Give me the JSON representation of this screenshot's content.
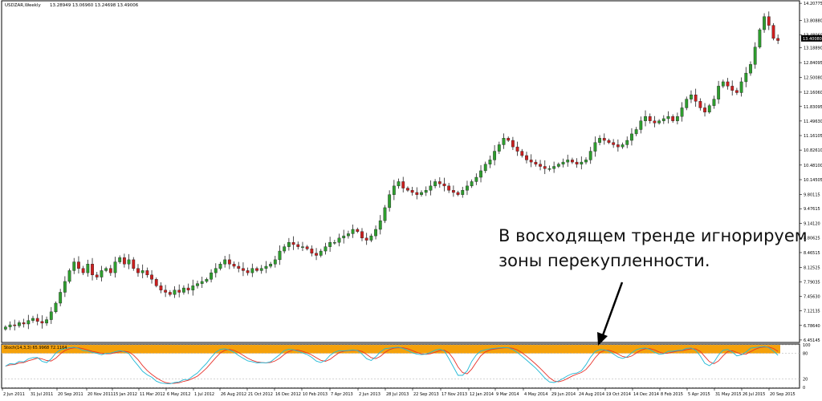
{
  "header": {
    "symbol_label": "USDZAR,Weekly",
    "ohlc_label": "13.28949 13.06960 13.24698 13.49006"
  },
  "annotation": {
    "line1": "В восходящем тренде игнорируем",
    "line2": "зоны перекупленности."
  },
  "indicator": {
    "label": "Stoch(14,3,3) 65.9968 72.1164"
  },
  "colors": {
    "bull": "#2e9e2e",
    "bear": "#cc1f1f",
    "stoch_main": "#1fb8d6",
    "stoch_signal": "#e8322b",
    "overbought_zone": "#f5a10a",
    "current_price_bg": "#000000"
  },
  "chart_data": [
    {
      "type": "candlestick",
      "title": "USDZAR,Weekly",
      "ylim": [
        6.45,
        14.21
      ],
      "price_ticks": [
        "14.20775",
        "13.80880",
        "13.48060",
        "13.18890",
        "12.84095",
        "12.50080",
        "12.16060",
        "11.83095",
        "11.49630",
        "11.16105",
        "10.82610",
        "10.48100",
        "10.14505",
        "9.80115",
        "9.47615",
        "9.14120",
        "8.80625",
        "8.46515",
        "8.12525",
        "7.79035",
        "7.45630",
        "7.12135",
        "6.78640",
        "6.45145"
      ],
      "current_price": "13.40080",
      "current_price_value": 13.4008,
      "x_labels": [
        "2 Jun 2011",
        "31 Jul 2011",
        "20 Sep 2011",
        "20 Nov 2011",
        "15 Jan 2012",
        "11 Mar 2012",
        "6 May 2012",
        "1 Jul 2012",
        "26 Aug 2012",
        "21 Oct 2012",
        "16 Dec 2012",
        "10 Feb 2013",
        "7 Apr 2013",
        "2 Jun 2013",
        "28 Jul 2013",
        "22 Sep 2013",
        "17 Nov 2013",
        "12 Jan 2014",
        "9 Mar 2014",
        "4 May 2014",
        "29 Jun 2014",
        "24 Aug 2014",
        "19 Oct 2014",
        "14 Dec 2014",
        "8 Feb 2015",
        "5 Apr 2015",
        "31 May 2015",
        "26 Jul 2015",
        "20 Sep 2015"
      ],
      "close_series": [
        6.75,
        6.8,
        6.78,
        6.85,
        6.82,
        6.9,
        6.95,
        6.88,
        6.84,
        6.92,
        7.1,
        7.3,
        7.55,
        7.8,
        8.05,
        8.25,
        8.1,
        8.0,
        8.2,
        7.95,
        7.9,
        8.05,
        8.1,
        8.0,
        8.25,
        8.35,
        8.2,
        8.3,
        8.1,
        8.0,
        8.05,
        7.95,
        7.85,
        7.7,
        7.6,
        7.55,
        7.5,
        7.6,
        7.55,
        7.65,
        7.6,
        7.7,
        7.75,
        7.8,
        7.85,
        8.0,
        8.1,
        8.2,
        8.3,
        8.2,
        8.15,
        8.1,
        8.05,
        8.0,
        8.1,
        8.05,
        8.1,
        8.15,
        8.2,
        8.3,
        8.5,
        8.6,
        8.7,
        8.65,
        8.6,
        8.6,
        8.55,
        8.45,
        8.4,
        8.5,
        8.6,
        8.7,
        8.7,
        8.8,
        8.85,
        8.9,
        9.0,
        8.95,
        8.8,
        8.75,
        8.85,
        9.0,
        9.2,
        9.5,
        9.8,
        10.0,
        10.1,
        9.95,
        9.9,
        9.85,
        9.8,
        9.85,
        9.9,
        10.0,
        10.1,
        10.05,
        10.0,
        9.9,
        9.85,
        9.8,
        9.9,
        10.0,
        10.1,
        10.2,
        10.35,
        10.5,
        10.6,
        10.8,
        10.95,
        11.1,
        11.05,
        10.9,
        10.8,
        10.7,
        10.6,
        10.55,
        10.5,
        10.45,
        10.4,
        10.4,
        10.45,
        10.5,
        10.55,
        10.6,
        10.55,
        10.5,
        10.55,
        10.6,
        10.8,
        11.0,
        11.1,
        11.05,
        11.0,
        10.95,
        10.9,
        10.95,
        11.05,
        11.2,
        11.3,
        11.5,
        11.6,
        11.5,
        11.45,
        11.5,
        11.55,
        11.6,
        11.5,
        11.6,
        11.8,
        12.0,
        12.1,
        11.95,
        11.8,
        11.7,
        11.85,
        12.0,
        12.3,
        12.4,
        12.3,
        12.2,
        12.15,
        12.4,
        12.6,
        12.8,
        13.2,
        13.6,
        13.9,
        13.7,
        13.4,
        13.35
      ],
      "stochastic": {
        "label": "Stoch(14,3,3) 65.9968 72.1164",
        "main": 65.9968,
        "signal": 72.1164,
        "levels": [
          100,
          80,
          20,
          0
        ],
        "ylim": [
          0,
          100
        ],
        "overbought_zone": [
          80,
          100
        ]
      }
    }
  ]
}
